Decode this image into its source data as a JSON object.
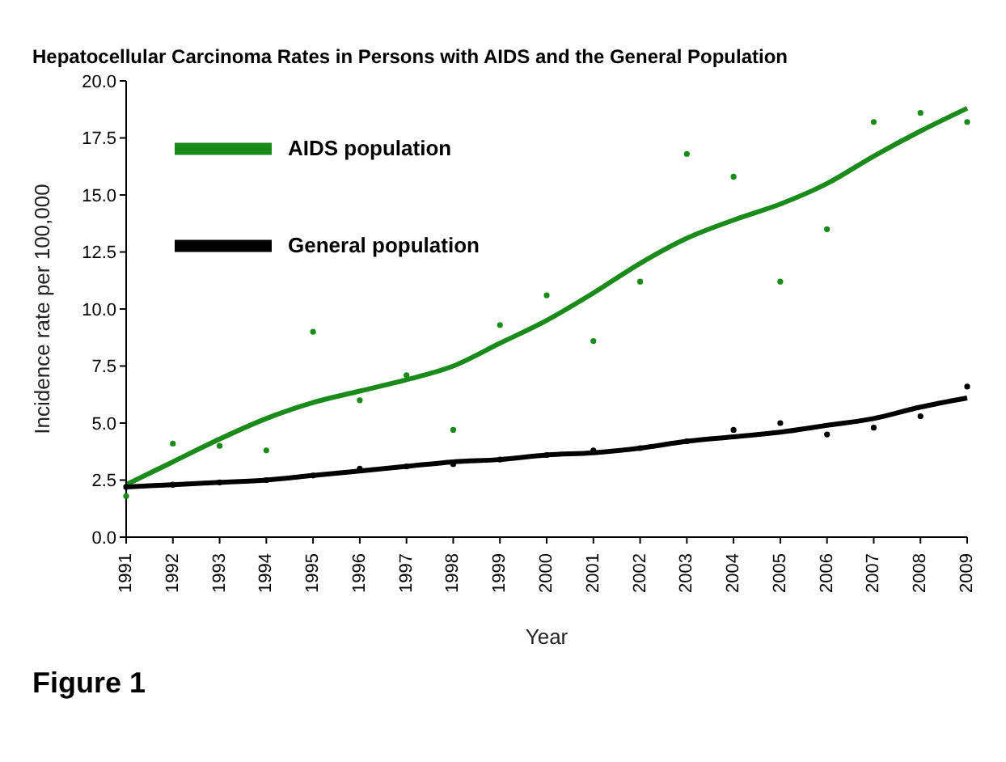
{
  "chart_data": {
    "type": "line",
    "title": "Hepatocellular Carcinoma Rates in Persons with AIDS and the General Population",
    "xlabel": "Year",
    "ylabel": "Incidence rate per 100,000",
    "categories": [
      "1991",
      "1992",
      "1993",
      "1994",
      "1995",
      "1996",
      "1997",
      "1998",
      "1999",
      "2000",
      "2001",
      "2002",
      "2003",
      "2004",
      "2005",
      "2006",
      "2007",
      "2008",
      "2009"
    ],
    "series": [
      {
        "name": "AIDS population",
        "color": "#1a8a1a",
        "marker": "none",
        "values": [
          2.3,
          3.3,
          4.3,
          5.2,
          5.9,
          6.4,
          6.9,
          7.5,
          8.5,
          9.5,
          10.7,
          12.0,
          13.1,
          13.9,
          14.6,
          15.5,
          16.7,
          17.8,
          18.8
        ]
      },
      {
        "name": "General population",
        "color": "#000000",
        "marker": "none",
        "values": [
          2.2,
          2.3,
          2.4,
          2.5,
          2.7,
          2.9,
          3.1,
          3.3,
          3.4,
          3.6,
          3.7,
          3.9,
          4.2,
          4.4,
          4.6,
          4.9,
          5.2,
          5.7,
          6.1
        ]
      },
      {
        "type": "scatter",
        "color": "#1a8a1a",
        "marker": "circle",
        "values": [
          1.8,
          4.1,
          4.0,
          3.8,
          9.0,
          6.0,
          7.1,
          4.7,
          9.3,
          10.6,
          8.6,
          11.2,
          16.8,
          15.8,
          11.2,
          13.5,
          18.2,
          18.6,
          18.2
        ]
      },
      {
        "type": "scatter",
        "color": "#000000",
        "marker": "circle",
        "values": [
          2.2,
          2.3,
          2.4,
          2.5,
          2.7,
          3.0,
          3.1,
          3.2,
          3.4,
          3.6,
          3.8,
          3.9,
          4.2,
          4.7,
          5.0,
          4.5,
          4.8,
          5.3,
          6.6
        ]
      }
    ],
    "ylim": [
      0,
      20
    ],
    "yticks": [
      {
        "value": 0,
        "label": "0.0"
      },
      {
        "value": 2.5,
        "label": "2.5"
      },
      {
        "value": 5,
        "label": "5.0"
      },
      {
        "value": 7.5,
        "label": "7.5"
      },
      {
        "value": 10,
        "label": "10.0"
      },
      {
        "value": 12.5,
        "label": "12.5"
      },
      {
        "value": 15,
        "label": "15.0"
      },
      {
        "value": 17.5,
        "label": "17.5"
      },
      {
        "value": 20,
        "label": "20.0"
      }
    ],
    "grid": false,
    "legend": "top left",
    "annotations": [
      "Figure 1"
    ]
  }
}
